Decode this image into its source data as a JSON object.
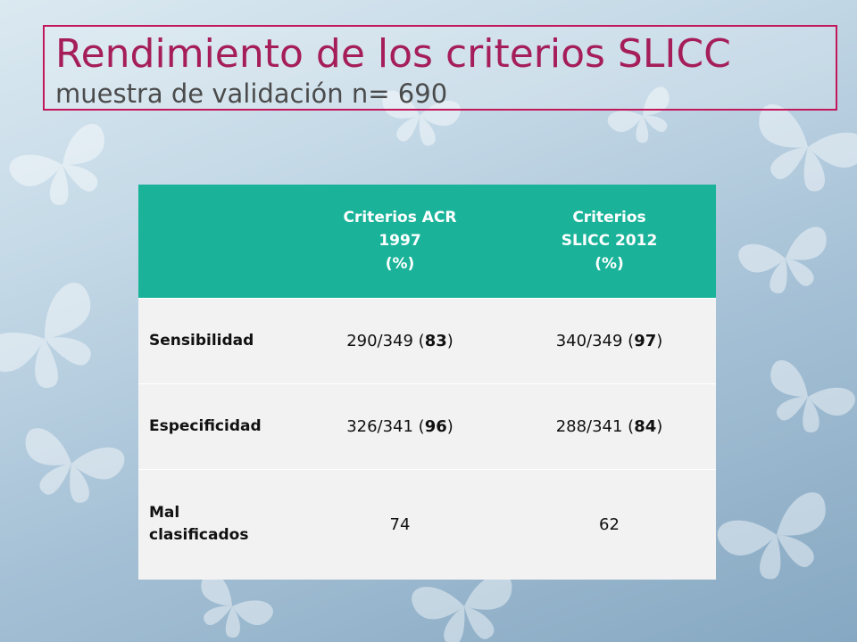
{
  "slide": {
    "title": "Rendimiento de los criterios SLICC",
    "subtitle": "muestra de validación n= 690"
  },
  "table": {
    "header": {
      "empty": "",
      "acr": [
        "Criterios ACR",
        "1997",
        "(%)"
      ],
      "slicc": [
        "Criterios",
        "SLICC 2012",
        "(%)"
      ]
    },
    "rows": [
      {
        "label": "Sensibilidad",
        "acr": {
          "before": "290/349 (",
          "bold": "83",
          "after": ")"
        },
        "slicc": {
          "before": "340/349 (",
          "bold": "97",
          "after": ")"
        }
      },
      {
        "label": "Especificidad",
        "acr": {
          "before": "326/341 (",
          "bold": "96",
          "after": ")"
        },
        "slicc": {
          "before": "288/341 (",
          "bold": "84",
          "after": ")"
        }
      },
      {
        "label_lines": [
          "Mal",
          "clasificados"
        ],
        "acr": {
          "value": "74"
        },
        "slicc": {
          "value": "62"
        }
      }
    ]
  },
  "colors": {
    "title": "#a51e5a",
    "title_border": "#c2185b",
    "subtitle": "#4b4b4b",
    "header_bg": "#1ab39a",
    "cell_bg": "#f2f2f2"
  },
  "background": {
    "decoration": "butterfly-pattern"
  }
}
